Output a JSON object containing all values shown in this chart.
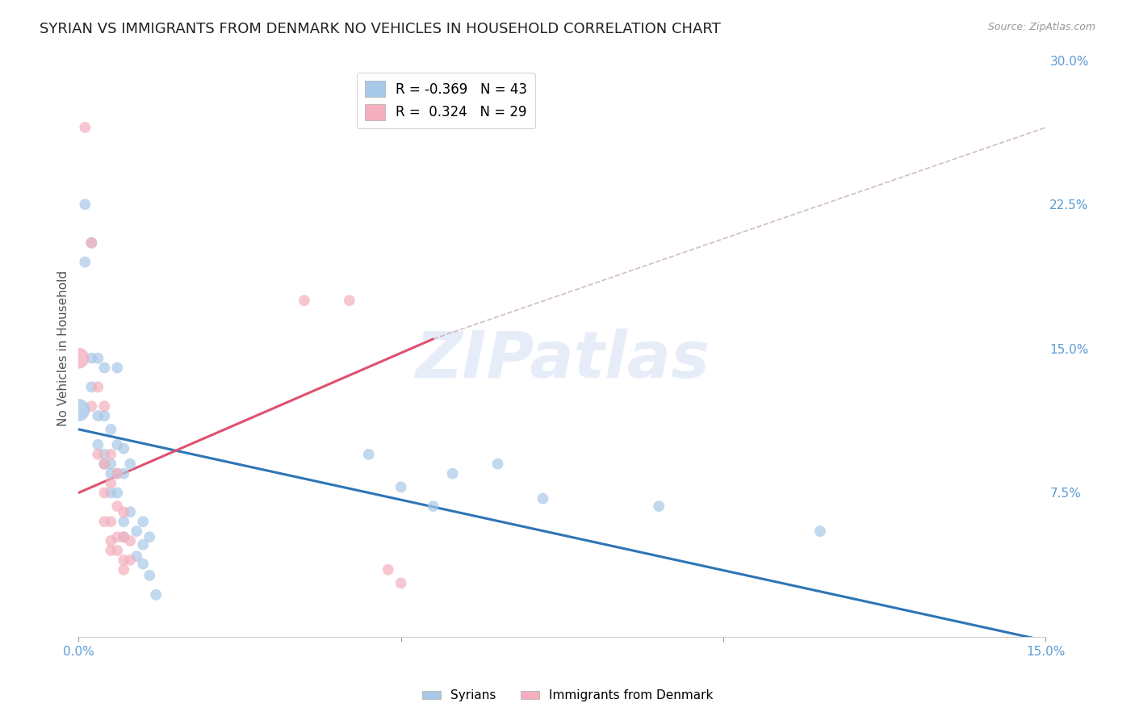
{
  "title": "SYRIAN VS IMMIGRANTS FROM DENMARK NO VEHICLES IN HOUSEHOLD CORRELATION CHART",
  "source": "Source: ZipAtlas.com",
  "ylabel": "No Vehicles in Household",
  "xlim": [
    0.0,
    0.15
  ],
  "ylim": [
    0.0,
    0.3
  ],
  "xticks": [
    0.0,
    0.05,
    0.1,
    0.15
  ],
  "xtick_labels": [
    "0.0%",
    "",
    "",
    "15.0%"
  ],
  "yticks": [
    0.0,
    0.075,
    0.15,
    0.225,
    0.3
  ],
  "ytick_labels": [
    "",
    "7.5%",
    "15.0%",
    "22.5%",
    "30.0%"
  ],
  "watermark": "ZIPatlas",
  "legend_entries": [
    {
      "label": "R = -0.369   N = 43",
      "color": "#9dc3e6"
    },
    {
      "label": "R =  0.324   N = 29",
      "color": "#f4b8c1"
    }
  ],
  "syrians": {
    "color": "#a8c8e8",
    "line_color": "#2e75b6",
    "R": -0.369,
    "N": 43,
    "points": [
      [
        0.0,
        0.118
      ],
      [
        0.001,
        0.225
      ],
      [
        0.002,
        0.205
      ],
      [
        0.001,
        0.195
      ],
      [
        0.002,
        0.145
      ],
      [
        0.002,
        0.13
      ],
      [
        0.003,
        0.145
      ],
      [
        0.003,
        0.115
      ],
      [
        0.003,
        0.1
      ],
      [
        0.004,
        0.14
      ],
      [
        0.004,
        0.115
      ],
      [
        0.004,
        0.095
      ],
      [
        0.004,
        0.09
      ],
      [
        0.005,
        0.108
      ],
      [
        0.005,
        0.09
      ],
      [
        0.005,
        0.085
      ],
      [
        0.005,
        0.075
      ],
      [
        0.006,
        0.14
      ],
      [
        0.006,
        0.1
      ],
      [
        0.006,
        0.085
      ],
      [
        0.006,
        0.075
      ],
      [
        0.007,
        0.098
      ],
      [
        0.007,
        0.085
      ],
      [
        0.007,
        0.06
      ],
      [
        0.007,
        0.052
      ],
      [
        0.008,
        0.09
      ],
      [
        0.008,
        0.065
      ],
      [
        0.009,
        0.055
      ],
      [
        0.009,
        0.042
      ],
      [
        0.01,
        0.06
      ],
      [
        0.01,
        0.048
      ],
      [
        0.01,
        0.038
      ],
      [
        0.011,
        0.052
      ],
      [
        0.011,
        0.032
      ],
      [
        0.012,
        0.022
      ],
      [
        0.045,
        0.095
      ],
      [
        0.05,
        0.078
      ],
      [
        0.055,
        0.068
      ],
      [
        0.058,
        0.085
      ],
      [
        0.065,
        0.09
      ],
      [
        0.072,
        0.072
      ],
      [
        0.09,
        0.068
      ],
      [
        0.115,
        0.055
      ]
    ],
    "sizes": [
      400,
      100,
      100,
      100,
      100,
      100,
      100,
      100,
      100,
      100,
      100,
      100,
      100,
      100,
      100,
      100,
      100,
      100,
      100,
      100,
      100,
      100,
      100,
      100,
      100,
      100,
      100,
      100,
      100,
      100,
      100,
      100,
      100,
      100,
      100,
      100,
      100,
      100,
      100,
      100,
      100,
      100,
      100
    ]
  },
  "denmark": {
    "color": "#f4b0be",
    "line_color": "#e05070",
    "R": 0.324,
    "N": 29,
    "points": [
      [
        0.0,
        0.145
      ],
      [
        0.001,
        0.265
      ],
      [
        0.002,
        0.205
      ],
      [
        0.002,
        0.12
      ],
      [
        0.003,
        0.13
      ],
      [
        0.003,
        0.095
      ],
      [
        0.004,
        0.12
      ],
      [
        0.004,
        0.09
      ],
      [
        0.004,
        0.075
      ],
      [
        0.004,
        0.06
      ],
      [
        0.005,
        0.095
      ],
      [
        0.005,
        0.08
      ],
      [
        0.005,
        0.06
      ],
      [
        0.005,
        0.05
      ],
      [
        0.005,
        0.045
      ],
      [
        0.006,
        0.085
      ],
      [
        0.006,
        0.068
      ],
      [
        0.006,
        0.052
      ],
      [
        0.006,
        0.045
      ],
      [
        0.007,
        0.065
      ],
      [
        0.007,
        0.052
      ],
      [
        0.007,
        0.04
      ],
      [
        0.007,
        0.035
      ],
      [
        0.008,
        0.05
      ],
      [
        0.008,
        0.04
      ],
      [
        0.035,
        0.175
      ],
      [
        0.042,
        0.175
      ],
      [
        0.048,
        0.035
      ],
      [
        0.05,
        0.028
      ]
    ],
    "sizes": [
      350,
      100,
      100,
      100,
      100,
      100,
      100,
      100,
      100,
      100,
      100,
      100,
      100,
      100,
      100,
      100,
      100,
      100,
      100,
      100,
      100,
      100,
      100,
      100,
      100,
      100,
      100,
      100,
      100
    ]
  },
  "blue_line": {
    "x": [
      0.0,
      0.15
    ],
    "y": [
      0.108,
      -0.002
    ]
  },
  "pink_solid_line": {
    "x": [
      0.0,
      0.055
    ],
    "y": [
      0.075,
      0.155
    ]
  },
  "pink_dashed_line": {
    "x": [
      0.055,
      0.15
    ],
    "y": [
      0.155,
      0.265
    ]
  },
  "background_color": "#ffffff",
  "grid_color": "#cccccc",
  "title_fontsize": 13,
  "axis_label_fontsize": 11,
  "tick_fontsize": 11,
  "ytick_color": "#5b9bd5",
  "xtick_color": "#5b9bd5"
}
